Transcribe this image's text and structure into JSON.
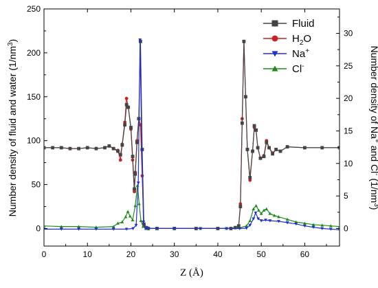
{
  "chart_data": {
    "type": "line",
    "xlabel": "Z (Å)",
    "ylabel_left_pre": "Number density of fluid and water (1/nm",
    "ylabel_left_sup": "3",
    "ylabel_left_post": ")",
    "ylabel_right_pre": "Number density of Na",
    "ylabel_right_sup1": "+",
    "ylabel_right_mid": " and Cl",
    "ylabel_right_sup2": "-",
    "ylabel_right_post1": " (1/nm",
    "ylabel_right_sup3": "3",
    "ylabel_right_post2": ")",
    "xlim": [
      0,
      68
    ],
    "ylim_left": [
      -20,
      250
    ],
    "ylim_right": [
      -2.7,
      33.75
    ],
    "x_ticks": [
      "0",
      "10",
      "20",
      "30",
      "40",
      "50",
      "60"
    ],
    "y_left_ticks": [
      "0",
      "50",
      "100",
      "150",
      "200",
      "250"
    ],
    "y_right_ticks": [
      "0",
      "5",
      "10",
      "15",
      "20",
      "25",
      "30"
    ],
    "legend_position": "top-right",
    "series": [
      {
        "name": "Fluid",
        "legend_main": "Fluid",
        "legend_sub": "",
        "legend_sup": "",
        "axis": "left",
        "color": "#444444",
        "marker": "square",
        "x": [
          0,
          2,
          4,
          6,
          8,
          10,
          12,
          14,
          15,
          16,
          17,
          17.6,
          18,
          18.6,
          19,
          19.4,
          20,
          20.4,
          20.8,
          21,
          21.4,
          21.8,
          22.2,
          22.6,
          23,
          23.6,
          24,
          26,
          30,
          35,
          40,
          43,
          44,
          44.8,
          45.2,
          45.6,
          46,
          46.4,
          46.8,
          47.4,
          48,
          48.4,
          48.8,
          49.2,
          49.8,
          50.6,
          51.2,
          51.8,
          52.6,
          53.4,
          54.4,
          56,
          60,
          64,
          68
        ],
        "y": [
          92,
          92,
          92,
          91,
          91,
          92,
          91,
          92,
          94,
          91,
          88,
          84,
          95,
          118,
          141,
          138,
          115,
          82,
          45,
          62,
          98,
          125,
          213,
          90,
          5,
          1,
          0,
          0,
          0,
          0,
          0,
          0,
          1,
          3,
          25,
          120,
          213,
          150,
          90,
          58,
          88,
          117,
          112,
          92,
          80,
          82,
          98,
          92,
          85,
          90,
          88,
          93,
          92,
          92,
          92
        ]
      },
      {
        "name": "H2O",
        "legend_main": "H",
        "legend_sub": "2",
        "legend_sup": "",
        "legend_after": "O",
        "axis": "left",
        "color": "#cc1f1f",
        "marker": "circle",
        "x": [
          0,
          2,
          4,
          6,
          8,
          10,
          12,
          14,
          15,
          16,
          17,
          17.6,
          18,
          18.6,
          19,
          19.4,
          20,
          20.4,
          20.8,
          21,
          21.4,
          21.8,
          22.2,
          22.6,
          23,
          23.6,
          24,
          26,
          30,
          35,
          40,
          43,
          44,
          44.8,
          45.2,
          45.6,
          46,
          46.4,
          46.8,
          47.4,
          48,
          48.4,
          48.8,
          49.2,
          49.8,
          50.6,
          51.2,
          51.8,
          52.6,
          53.4,
          54.4,
          56,
          60,
          64,
          68
        ],
        "y": [
          92,
          92,
          92,
          91,
          91,
          92,
          91,
          92,
          94,
          91,
          89,
          78,
          96,
          121,
          148,
          138,
          113,
          78,
          42,
          64,
          100,
          125,
          118,
          60,
          3,
          1,
          0,
          0,
          0,
          0,
          0,
          0,
          1,
          3,
          28,
          125,
          213,
          150,
          90,
          55,
          88,
          115,
          112,
          92,
          80,
          83,
          100,
          92,
          86,
          90,
          88,
          93,
          92,
          92,
          92
        ]
      },
      {
        "name": "Na+",
        "legend_main": "Na",
        "legend_sub": "",
        "legend_sup": "+",
        "axis": "right",
        "color": "#1f2fd0",
        "marker": "triangle-down",
        "x": [
          0,
          4,
          8,
          12,
          16,
          19,
          20.5,
          21.2,
          21.7,
          22.1,
          22.5,
          22.9,
          23.4,
          24,
          26,
          30,
          36,
          42,
          45,
          46.6,
          47.4,
          48.2,
          48.7,
          49.3,
          50,
          51,
          52,
          54,
          56,
          58,
          60,
          62,
          64,
          66,
          68
        ],
        "y": [
          -0.1,
          -0.1,
          -0.1,
          -0.1,
          -0.1,
          -0.1,
          0,
          0.5,
          7,
          29,
          12,
          1,
          0,
          0,
          0,
          0,
          0,
          0,
          0,
          0.05,
          0.5,
          1.5,
          2.4,
          1.5,
          1.2,
          1.3,
          1.2,
          1.1,
          0.9,
          0.7,
          0.4,
          0.2,
          0,
          -0.1,
          -0.2
        ]
      },
      {
        "name": "Cl-",
        "legend_main": "Cl",
        "legend_sub": "",
        "legend_sup": "-",
        "axis": "right",
        "color": "#1e8a1e",
        "marker": "triangle-up",
        "x": [
          0,
          4,
          8,
          12,
          16,
          17,
          18,
          18.8,
          19.3,
          19.8,
          20.4,
          21,
          21.5,
          21.9,
          22.3,
          22.8,
          23.4,
          24,
          26,
          30,
          36,
          42,
          45,
          46.6,
          47.4,
          48.2,
          48.8,
          49.4,
          50,
          50.6,
          51.2,
          52,
          53,
          54,
          56,
          58,
          60,
          62,
          64,
          66,
          68
        ],
        "y": [
          0.4,
          0.3,
          0.3,
          0.2,
          0.3,
          0.8,
          1.0,
          1.8,
          2.6,
          1.9,
          1.3,
          3.5,
          6.6,
          3.8,
          1.2,
          0.3,
          0,
          0,
          0,
          0,
          0,
          0,
          0.1,
          0.4,
          1.2,
          3.0,
          3.5,
          2.8,
          2.3,
          2.8,
          3.0,
          2.3,
          2.0,
          1.8,
          1.4,
          1.0,
          0.8,
          0.6,
          0.5,
          0.4,
          0.3
        ]
      }
    ]
  }
}
